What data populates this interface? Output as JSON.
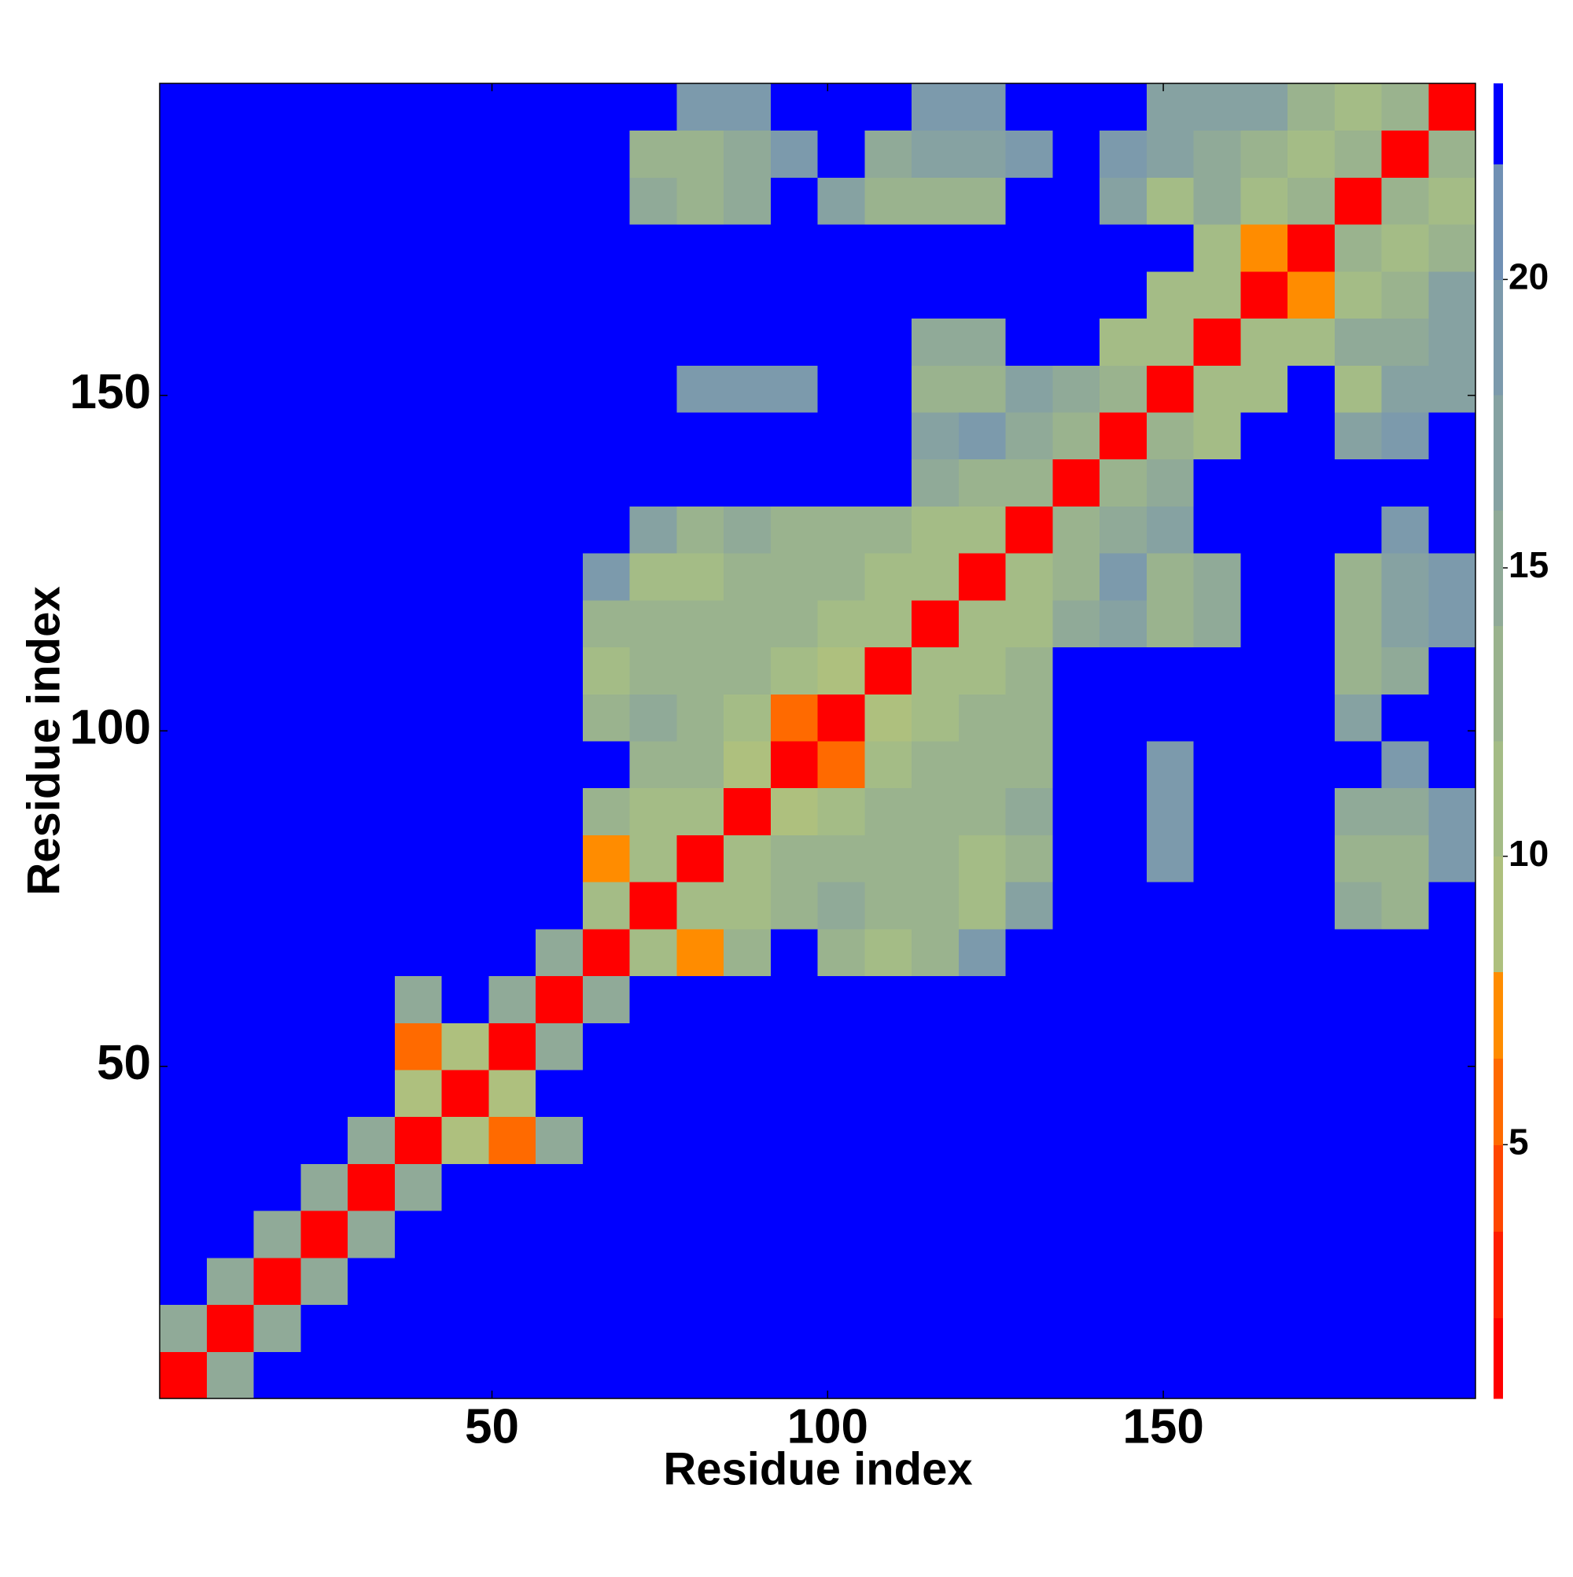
{
  "chart_data": {
    "type": "heatmap",
    "xlabel": "Residue index",
    "ylabel": "Residue index",
    "x_bins": [
      0.5,
      7.5,
      14.5,
      21.5,
      28.5,
      35.5,
      42.5,
      49.5,
      56.5,
      63.5,
      70.5,
      77.5,
      84.5,
      91.5,
      98.5,
      105.5,
      112.5,
      119.5,
      126.5,
      133.5,
      140.5,
      147.5,
      154.5,
      161.5,
      168.5,
      175.5,
      182.5,
      189.5,
      196.5
    ],
    "y_bins": [
      0.5,
      7.5,
      14.5,
      21.5,
      28.5,
      35.5,
      42.5,
      49.5,
      56.5,
      63.5,
      70.5,
      77.5,
      84.5,
      91.5,
      98.5,
      105.5,
      112.5,
      119.5,
      126.5,
      133.5,
      140.5,
      147.5,
      154.5,
      161.5,
      168.5,
      175.5,
      182.5,
      189.5,
      196.5
    ],
    "xlim": [
      0.5,
      196.5
    ],
    "ylim": [
      0.5,
      196.5
    ],
    "xticks": [
      50,
      100,
      150
    ],
    "yticks": [
      50,
      100,
      150
    ],
    "z": [
      [
        1,
        15,
        23,
        23,
        23,
        23,
        23,
        23,
        23,
        23,
        23,
        23,
        23,
        23,
        23,
        23,
        23,
        23,
        23,
        23,
        23,
        23,
        23,
        23,
        23,
        23,
        23,
        23
      ],
      [
        15,
        1,
        15,
        23,
        23,
        23,
        23,
        23,
        23,
        23,
        23,
        23,
        23,
        23,
        23,
        23,
        23,
        23,
        23,
        23,
        23,
        23,
        23,
        23,
        23,
        23,
        23,
        23
      ],
      [
        23,
        15,
        1,
        15,
        23,
        23,
        23,
        23,
        23,
        23,
        23,
        23,
        23,
        23,
        23,
        23,
        23,
        23,
        23,
        23,
        23,
        23,
        23,
        23,
        23,
        23,
        23,
        23
      ],
      [
        23,
        23,
        15,
        1,
        15,
        23,
        23,
        23,
        23,
        23,
        23,
        23,
        23,
        23,
        23,
        23,
        23,
        23,
        23,
        23,
        23,
        23,
        23,
        23,
        23,
        23,
        23,
        23
      ],
      [
        23,
        23,
        23,
        15,
        1,
        15,
        23,
        23,
        23,
        23,
        23,
        23,
        23,
        23,
        23,
        23,
        23,
        23,
        23,
        23,
        23,
        23,
        23,
        23,
        23,
        23,
        23,
        23
      ],
      [
        23,
        23,
        23,
        23,
        15,
        1,
        9,
        6,
        14,
        23,
        23,
        23,
        23,
        23,
        23,
        23,
        23,
        23,
        23,
        23,
        23,
        23,
        23,
        23,
        23,
        23,
        23,
        23
      ],
      [
        23,
        23,
        23,
        23,
        23,
        9,
        1,
        9,
        23,
        23,
        23,
        23,
        23,
        23,
        23,
        23,
        23,
        23,
        23,
        23,
        23,
        23,
        23,
        23,
        23,
        23,
        23,
        23
      ],
      [
        23,
        23,
        23,
        23,
        23,
        6,
        9,
        1,
        15,
        23,
        23,
        23,
        23,
        23,
        23,
        23,
        23,
        23,
        23,
        23,
        23,
        23,
        23,
        23,
        23,
        23,
        23,
        23
      ],
      [
        23,
        23,
        23,
        23,
        23,
        14,
        23,
        15,
        1,
        15,
        23,
        23,
        23,
        23,
        23,
        23,
        23,
        23,
        23,
        23,
        23,
        23,
        23,
        23,
        23,
        23,
        23,
        23
      ],
      [
        23,
        23,
        23,
        23,
        23,
        23,
        23,
        23,
        15,
        1,
        10,
        7,
        13,
        23,
        13,
        11,
        13,
        18,
        23,
        23,
        23,
        23,
        23,
        23,
        23,
        23,
        23,
        23
      ],
      [
        23,
        23,
        23,
        23,
        23,
        23,
        23,
        23,
        23,
        10,
        1,
        10,
        11,
        13,
        14,
        13,
        12,
        11,
        16,
        23,
        23,
        23,
        23,
        23,
        23,
        14,
        13,
        23
      ],
      [
        23,
        23,
        23,
        23,
        23,
        23,
        23,
        23,
        23,
        7,
        10,
        1,
        10,
        12,
        13,
        13,
        12,
        10,
        13,
        23,
        23,
        18,
        23,
        23,
        23,
        13,
        12,
        18
      ],
      [
        23,
        23,
        23,
        23,
        23,
        23,
        23,
        23,
        23,
        13,
        11,
        10,
        1,
        9,
        11,
        12,
        13,
        12,
        14,
        23,
        23,
        19,
        23,
        23,
        23,
        14,
        15,
        18
      ],
      [
        23,
        23,
        23,
        23,
        23,
        23,
        23,
        23,
        23,
        23,
        13,
        12,
        9,
        1,
        6,
        10,
        13,
        12,
        12,
        23,
        23,
        19,
        23,
        23,
        23,
        23,
        18,
        23
      ],
      [
        23,
        23,
        23,
        23,
        23,
        23,
        23,
        23,
        23,
        13,
        14,
        13,
        11,
        6,
        1,
        9,
        11,
        13,
        13,
        23,
        23,
        23,
        23,
        23,
        23,
        16,
        23,
        23
      ],
      [
        23,
        23,
        23,
        23,
        23,
        23,
        23,
        23,
        23,
        11,
        13,
        13,
        12,
        10,
        9,
        1,
        10,
        11,
        12,
        23,
        23,
        23,
        23,
        23,
        23,
        12,
        15,
        23
      ],
      [
        23,
        23,
        23,
        23,
        23,
        23,
        23,
        23,
        23,
        13,
        12,
        12,
        13,
        13,
        11,
        10,
        1,
        10,
        11,
        15,
        17,
        13,
        15,
        23,
        23,
        13,
        16,
        19
      ],
      [
        23,
        23,
        23,
        23,
        23,
        23,
        23,
        23,
        23,
        18,
        11,
        10,
        12,
        12,
        13,
        11,
        10,
        1,
        10,
        13,
        18,
        12,
        14,
        23,
        23,
        13,
        16,
        19
      ],
      [
        23,
        23,
        23,
        23,
        23,
        23,
        23,
        23,
        23,
        23,
        16,
        13,
        14,
        12,
        13,
        12,
        11,
        10,
        1,
        12,
        14,
        17,
        23,
        23,
        23,
        23,
        18,
        23
      ],
      [
        23,
        23,
        23,
        23,
        23,
        23,
        23,
        23,
        23,
        23,
        23,
        23,
        23,
        23,
        23,
        23,
        15,
        13,
        12,
        1,
        12,
        14,
        23,
        23,
        23,
        23,
        23,
        23
      ],
      [
        23,
        23,
        23,
        23,
        23,
        23,
        23,
        23,
        23,
        23,
        23,
        23,
        23,
        23,
        23,
        23,
        17,
        18,
        14,
        12,
        1,
        12,
        11,
        23,
        23,
        17,
        18,
        23
      ],
      [
        23,
        23,
        23,
        23,
        23,
        23,
        23,
        23,
        23,
        23,
        23,
        18,
        19,
        19,
        23,
        23,
        13,
        12,
        17,
        14,
        12,
        1,
        10,
        10,
        23,
        11,
        16,
        16
      ],
      [
        23,
        23,
        23,
        23,
        23,
        23,
        23,
        23,
        23,
        23,
        23,
        23,
        23,
        23,
        23,
        23,
        15,
        14,
        23,
        23,
        11,
        10,
        1,
        10,
        11,
        14,
        15,
        17
      ],
      [
        23,
        23,
        23,
        23,
        23,
        23,
        23,
        23,
        23,
        23,
        23,
        23,
        23,
        23,
        23,
        23,
        23,
        23,
        23,
        23,
        23,
        10,
        10,
        1,
        7,
        10,
        13,
        16
      ],
      [
        23,
        23,
        23,
        23,
        23,
        23,
        23,
        23,
        23,
        23,
        23,
        23,
        23,
        23,
        23,
        23,
        23,
        23,
        23,
        23,
        23,
        23,
        11,
        7,
        1,
        12,
        11,
        12
      ],
      [
        23,
        23,
        23,
        23,
        23,
        23,
        23,
        23,
        23,
        23,
        14,
        13,
        14,
        23,
        16,
        12,
        13,
        13,
        23,
        23,
        17,
        11,
        14,
        10,
        12,
        1,
        12,
        10
      ],
      [
        23,
        23,
        23,
        23,
        23,
        23,
        23,
        23,
        23,
        23,
        13,
        12,
        15,
        18,
        23,
        15,
        16,
        16,
        18,
        23,
        18,
        16,
        15,
        13,
        11,
        12,
        1,
        12
      ],
      [
        23,
        23,
        23,
        23,
        23,
        23,
        23,
        23,
        23,
        23,
        23,
        18,
        18,
        23,
        23,
        23,
        19,
        19,
        23,
        23,
        23,
        16,
        17,
        16,
        12,
        10,
        12,
        1
      ]
    ],
    "colorbar": {
      "lim": [
        0.6,
        23.4
      ],
      "ticks": [
        5,
        10,
        15,
        20
      ],
      "levels": [
        0.6,
        2,
        3.5,
        5,
        6.5,
        8,
        10,
        12,
        14,
        16,
        18,
        20,
        22,
        23.4
      ],
      "colors": [
        "#ff0000",
        "#ff1e00",
        "#ff4600",
        "#ff6a00",
        "#ff8c00",
        "#aec07e",
        "#a4bc86",
        "#9ab38e",
        "#90aa98",
        "#86a2a2",
        "#7c9aac",
        "#7090b4",
        "#0000ff"
      ]
    }
  }
}
